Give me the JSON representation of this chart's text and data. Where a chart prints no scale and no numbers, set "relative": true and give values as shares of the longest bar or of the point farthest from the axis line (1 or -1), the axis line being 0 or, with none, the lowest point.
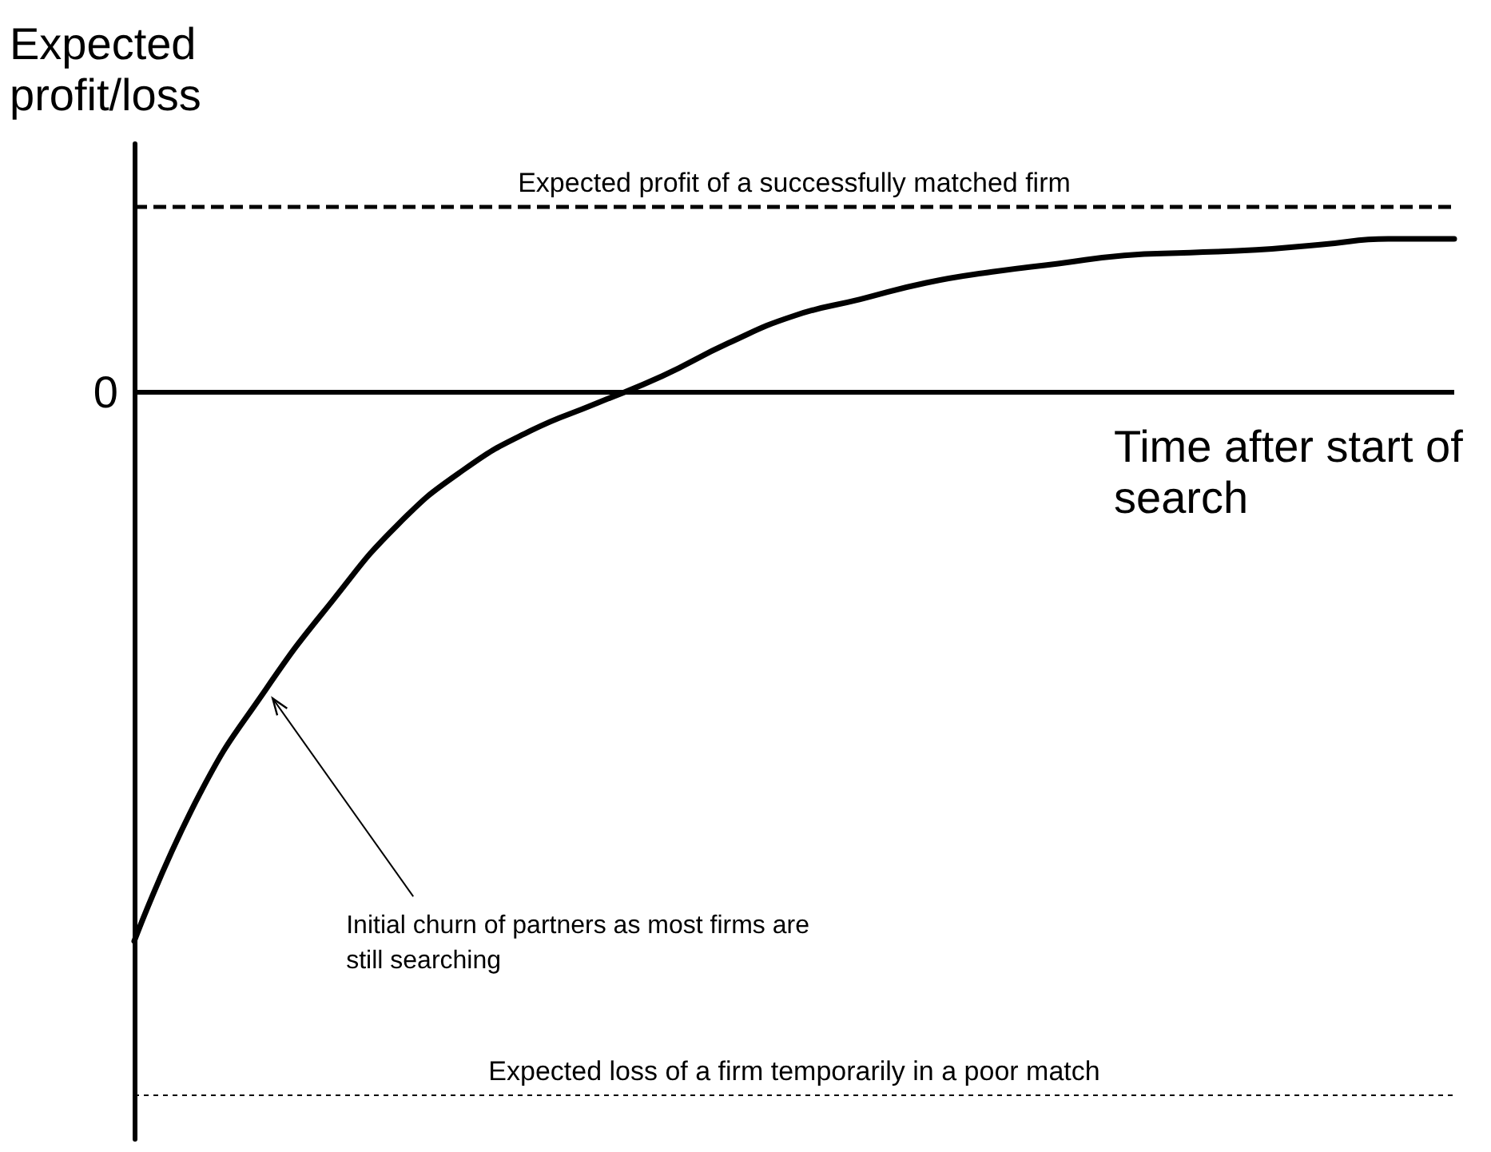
{
  "chart_data": {
    "type": "line",
    "relative": true,
    "ylabel": "Expected profit/loss",
    "xlabel": "Time after start of search",
    "categories": [
      null,
      null,
      null,
      null,
      null,
      null,
      null,
      null,
      null,
      null,
      null,
      null,
      null,
      null,
      null,
      null,
      null,
      null,
      null,
      null,
      null
    ],
    "series": [
      {
        "color": "#000000",
        "values": [
          -1,
          -0.73,
          -0.54,
          -0.38,
          -0.24,
          -0.14,
          -0.07,
          -0.02,
          0.03,
          0.09,
          0.14,
          0.17,
          0.2,
          0.22,
          0.235,
          0.25,
          0.255,
          0.26,
          0.27,
          0.28,
          0.28
        ]
      }
    ],
    "marker": "none",
    "line_style": "solid",
    "grid": false,
    "ref_lines": [
      {
        "axis": "y",
        "value": 0.34,
        "label": "Expected profit of a successfully matched firm",
        "line_style": "dashed",
        "color": "#000000"
      },
      {
        "axis": "y",
        "value": 0,
        "label": "0",
        "line_style": "solid",
        "color": "#000000"
      },
      {
        "axis": "y",
        "value": -1.28,
        "label": "Expected loss of a firm temporarily in a poor match",
        "line_style": "dotted",
        "color": "#000000"
      }
    ],
    "annotations": [
      "Initial churn of partners as most firms are still searching"
    ]
  }
}
